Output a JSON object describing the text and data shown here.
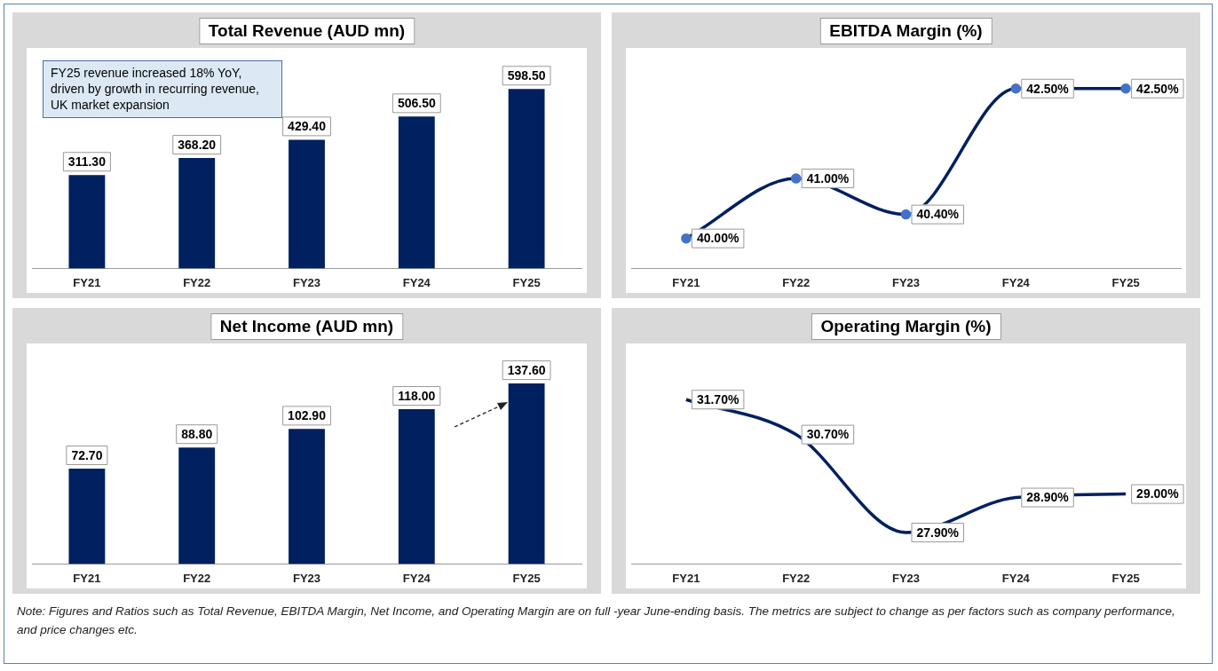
{
  "chart_data": [
    {
      "type": "bar",
      "title": "Total Revenue (AUD mn)",
      "categories": [
        "FY21",
        "FY22",
        "FY23",
        "FY24",
        "FY25"
      ],
      "legend": false,
      "grid": false,
      "series": [
        {
          "color": "#002060",
          "values": [
            311.3,
            368.2,
            429.4,
            506.5,
            598.5
          ],
          "value_labels": [
            "311.30",
            "368.20",
            "429.40",
            "506.50",
            "598.50"
          ]
        }
      ],
      "annotations": [
        "FY25 revenue increased 18% YoY, driven by growth in recurring revenue, UK market expansion"
      ]
    },
    {
      "type": "line",
      "title": "EBITDA Margin (%)",
      "categories": [
        "FY21",
        "FY22",
        "FY23",
        "FY24",
        "FY25"
      ],
      "legend": false,
      "grid": false,
      "marker": "circle",
      "line_style": "solid",
      "series": [
        {
          "color": "#002060",
          "values": [
            40.0,
            41.0,
            40.4,
            42.5,
            42.5
          ],
          "value_labels": [
            "40.00%",
            "41.00%",
            "40.40%",
            "42.50%",
            "42.50%"
          ]
        }
      ]
    },
    {
      "type": "bar",
      "title": "Net Income (AUD mn)",
      "categories": [
        "FY21",
        "FY22",
        "FY23",
        "FY24",
        "FY25"
      ],
      "legend": false,
      "grid": false,
      "series": [
        {
          "color": "#002060",
          "values": [
            72.7,
            88.8,
            102.9,
            118.0,
            137.6
          ],
          "value_labels": [
            "72.70",
            "88.80",
            "102.90",
            "118.00",
            "137.60"
          ]
        }
      ]
    },
    {
      "type": "line",
      "title": "Operating Margin (%)",
      "categories": [
        "FY21",
        "FY22",
        "FY23",
        "FY24",
        "FY25"
      ],
      "legend": false,
      "grid": false,
      "marker": "none",
      "line_style": "solid",
      "series": [
        {
          "color": "#002060",
          "values": [
            31.7,
            30.7,
            27.9,
            28.9,
            29.0
          ],
          "value_labels": [
            "31.70%",
            "30.70%",
            "27.90%",
            "28.90%",
            "29.00%"
          ]
        }
      ],
      "annotations": [
        "Note: Figures and Ratios such as Total Revenue, EBITDA Margin, Net Income, and Operating Margin are on full -year June-ending basis. The metrics are subject to change as per factors such as company performance, and price changes etc."
      ]
    }
  ]
}
